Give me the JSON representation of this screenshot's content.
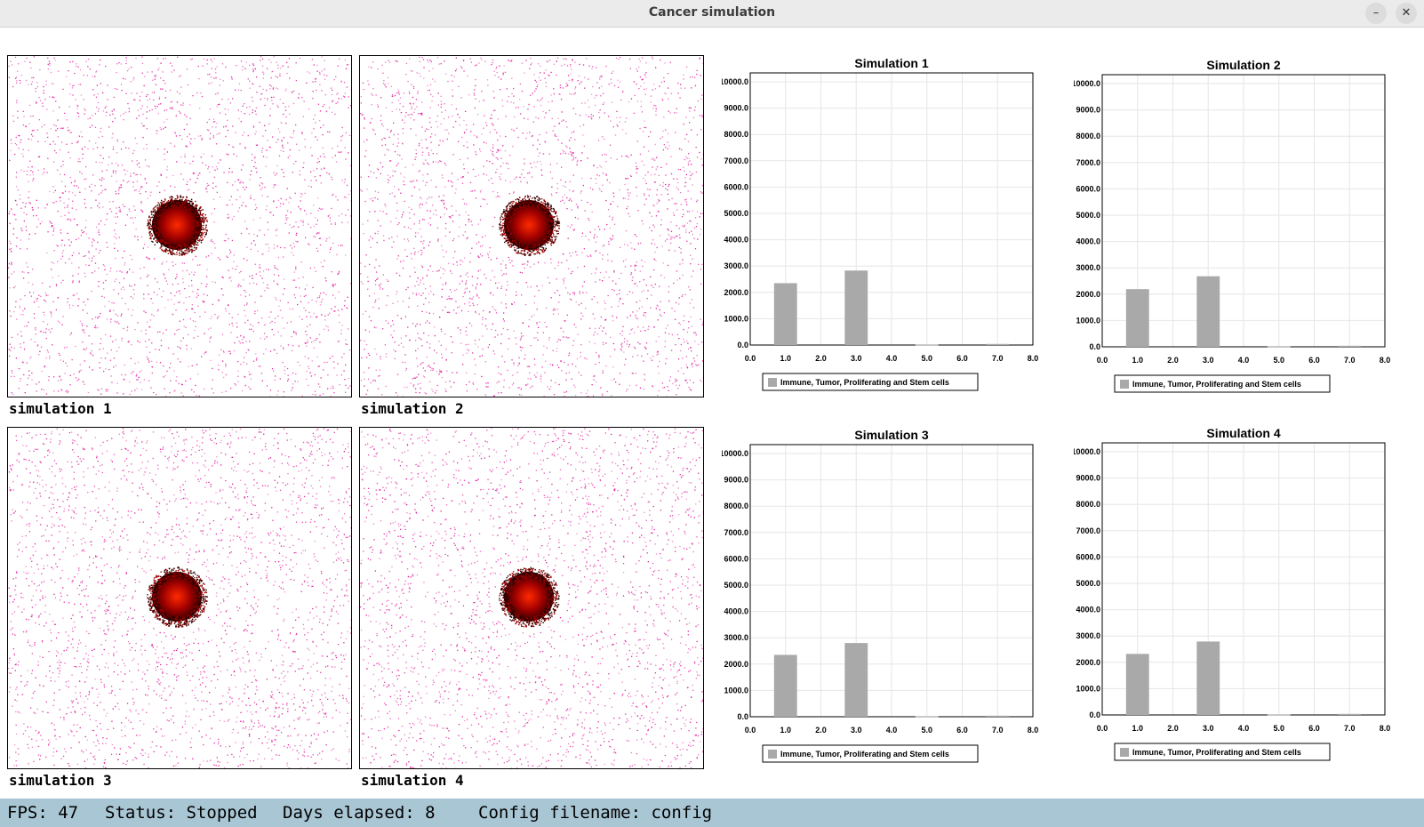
{
  "window": {
    "title": "Cancer simulation",
    "minimize_glyph": "–",
    "close_glyph": "✕"
  },
  "simulations": [
    {
      "label": "simulation 1"
    },
    {
      "label": "simulation 2"
    },
    {
      "label": "simulation 3"
    },
    {
      "label": "simulation 4"
    }
  ],
  "colors": {
    "immune_cells": "#e0189a",
    "tumor_core": "#ff2a00",
    "tumor_mid": "#a00000",
    "tumor_edge": "#2a0000",
    "bar_fill": "#a9a9a9",
    "status_bar": "#a9c6d4"
  },
  "chart_data": [
    {
      "type": "bar",
      "title": "Simulation 1",
      "x": [
        1.0,
        3.0,
        5.0,
        7.0
      ],
      "values": [
        2350,
        2830,
        20,
        40
      ],
      "xlim": [
        0,
        8
      ],
      "ylim": [
        0,
        10000
      ],
      "xticks": [
        "0.0",
        "1.0",
        "2.0",
        "3.0",
        "4.0",
        "5.0",
        "6.0",
        "7.0",
        "8.0"
      ],
      "yticks": [
        "0.0",
        "1000.0",
        "2000.0",
        "3000.0",
        "4000.0",
        "5000.0",
        "6000.0",
        "7000.0",
        "8000.0",
        "9000.0",
        "10000.0"
      ],
      "legend": "Immune, Tumor, Proliferating and Stem cells",
      "legend_position": "bottom",
      "grid": true
    },
    {
      "type": "bar",
      "title": "Simulation 2",
      "x": [
        1.0,
        3.0,
        5.0,
        7.0
      ],
      "values": [
        2190,
        2680,
        20,
        40
      ],
      "xlim": [
        0,
        8
      ],
      "ylim": [
        0,
        10000
      ],
      "xticks": [
        "0.0",
        "1.0",
        "2.0",
        "3.0",
        "4.0",
        "5.0",
        "6.0",
        "7.0",
        "8.0"
      ],
      "yticks": [
        "0.0",
        "1000.0",
        "2000.0",
        "3000.0",
        "4000.0",
        "5000.0",
        "6000.0",
        "7000.0",
        "8000.0",
        "9000.0",
        "10000.0"
      ],
      "legend": "Immune, Tumor, Proliferating and Stem cells",
      "legend_position": "bottom",
      "grid": true
    },
    {
      "type": "bar",
      "title": "Simulation 3",
      "x": [
        1.0,
        3.0,
        5.0,
        7.0
      ],
      "values": [
        2350,
        2800,
        20,
        40
      ],
      "xlim": [
        0,
        8
      ],
      "ylim": [
        0,
        10000
      ],
      "xticks": [
        "0.0",
        "1.0",
        "2.0",
        "3.0",
        "4.0",
        "5.0",
        "6.0",
        "7.0",
        "8.0"
      ],
      "yticks": [
        "0.0",
        "1000.0",
        "2000.0",
        "3000.0",
        "4000.0",
        "5000.0",
        "6000.0",
        "7000.0",
        "8000.0",
        "9000.0",
        "10000.0"
      ],
      "legend": "Immune, Tumor, Proliferating and Stem cells",
      "legend_position": "bottom",
      "grid": true
    },
    {
      "type": "bar",
      "title": "Simulation 4",
      "x": [
        1.0,
        3.0,
        5.0,
        7.0
      ],
      "values": [
        2320,
        2790,
        20,
        40
      ],
      "xlim": [
        0,
        8
      ],
      "ylim": [
        0,
        10000
      ],
      "xticks": [
        "0.0",
        "1.0",
        "2.0",
        "3.0",
        "4.0",
        "5.0",
        "6.0",
        "7.0",
        "8.0"
      ],
      "yticks": [
        "0.0",
        "1000.0",
        "2000.0",
        "3000.0",
        "4000.0",
        "5000.0",
        "6000.0",
        "7000.0",
        "8000.0",
        "9000.0",
        "10000.0"
      ],
      "legend": "Immune, Tumor, Proliferating and Stem cells",
      "legend_position": "bottom",
      "grid": true
    }
  ],
  "status": {
    "fps": "FPS: 47",
    "state": "Status: Stopped",
    "days": "Days elapsed: 8",
    "config": "Config filename: config"
  }
}
